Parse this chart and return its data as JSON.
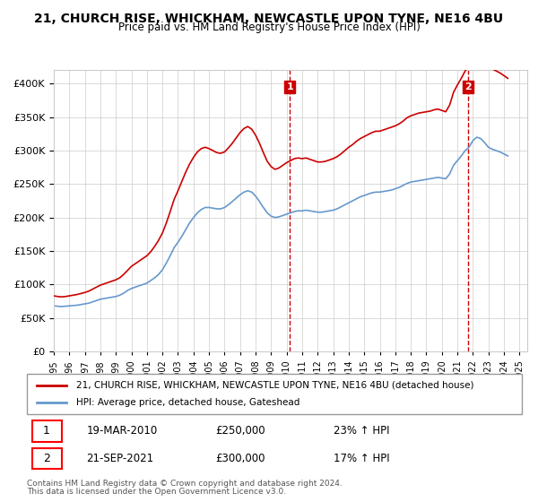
{
  "title": "21, CHURCH RISE, WHICKHAM, NEWCASTLE UPON TYNE, NE16 4BU",
  "subtitle": "Price paid vs. HM Land Registry's House Price Index (HPI)",
  "legend_line1": "21, CHURCH RISE, WHICKHAM, NEWCASTLE UPON TYNE, NE16 4BU (detached house)",
  "legend_line2": "HPI: Average price, detached house, Gateshead",
  "footnote1": "Contains HM Land Registry data © Crown copyright and database right 2024.",
  "footnote2": "This data is licensed under the Open Government Licence v3.0.",
  "transaction1_label": "1",
  "transaction1_date": "19-MAR-2010",
  "transaction1_price": "£250,000",
  "transaction1_hpi": "23% ↑ HPI",
  "transaction2_label": "2",
  "transaction2_date": "21-SEP-2021",
  "transaction2_price": "£300,000",
  "transaction2_hpi": "17% ↑ HPI",
  "red_color": "#cc0000",
  "blue_color": "#6699cc",
  "vline_color": "#cc0000",
  "background_color": "#ffffff",
  "grid_color": "#cccccc",
  "ylim": [
    0,
    420000
  ],
  "yticks": [
    0,
    50000,
    100000,
    150000,
    200000,
    250000,
    300000,
    350000,
    400000
  ],
  "hpi_data": {
    "years": [
      1995.0,
      1995.25,
      1995.5,
      1995.75,
      1996.0,
      1996.25,
      1996.5,
      1996.75,
      1997.0,
      1997.25,
      1997.5,
      1997.75,
      1998.0,
      1998.25,
      1998.5,
      1998.75,
      1999.0,
      1999.25,
      1999.5,
      1999.75,
      2000.0,
      2000.25,
      2000.5,
      2000.75,
      2001.0,
      2001.25,
      2001.5,
      2001.75,
      2002.0,
      2002.25,
      2002.5,
      2002.75,
      2003.0,
      2003.25,
      2003.5,
      2003.75,
      2004.0,
      2004.25,
      2004.5,
      2004.75,
      2005.0,
      2005.25,
      2005.5,
      2005.75,
      2006.0,
      2006.25,
      2006.5,
      2006.75,
      2007.0,
      2007.25,
      2007.5,
      2007.75,
      2008.0,
      2008.25,
      2008.5,
      2008.75,
      2009.0,
      2009.25,
      2009.5,
      2009.75,
      2010.0,
      2010.25,
      2010.5,
      2010.75,
      2011.0,
      2011.25,
      2011.5,
      2011.75,
      2012.0,
      2012.25,
      2012.5,
      2012.75,
      2013.0,
      2013.25,
      2013.5,
      2013.75,
      2014.0,
      2014.25,
      2014.5,
      2014.75,
      2015.0,
      2015.25,
      2015.5,
      2015.75,
      2016.0,
      2016.25,
      2016.5,
      2016.75,
      2017.0,
      2017.25,
      2017.5,
      2017.75,
      2018.0,
      2018.25,
      2018.5,
      2018.75,
      2019.0,
      2019.25,
      2019.5,
      2019.75,
      2020.0,
      2020.25,
      2020.5,
      2020.75,
      2021.0,
      2021.25,
      2021.5,
      2021.75,
      2022.0,
      2022.25,
      2022.5,
      2022.75,
      2023.0,
      2023.25,
      2023.5,
      2023.75,
      2024.0,
      2024.25
    ],
    "values": [
      68000,
      67500,
      67000,
      67500,
      68000,
      68500,
      69000,
      70000,
      71000,
      72000,
      74000,
      76000,
      78000,
      79000,
      80000,
      81000,
      82000,
      84000,
      87000,
      91000,
      94000,
      96000,
      98000,
      100000,
      102000,
      106000,
      110000,
      115000,
      122000,
      132000,
      143000,
      155000,
      163000,
      172000,
      182000,
      192000,
      200000,
      207000,
      212000,
      215000,
      215000,
      214000,
      213000,
      213000,
      215000,
      219000,
      224000,
      229000,
      234000,
      238000,
      240000,
      238000,
      232000,
      224000,
      215000,
      207000,
      202000,
      200000,
      201000,
      203000,
      205000,
      207000,
      209000,
      210000,
      210000,
      211000,
      210000,
      209000,
      208000,
      208000,
      209000,
      210000,
      211000,
      213000,
      216000,
      219000,
      222000,
      225000,
      228000,
      231000,
      233000,
      235000,
      237000,
      238000,
      238000,
      239000,
      240000,
      241000,
      243000,
      245000,
      248000,
      251000,
      253000,
      254000,
      255000,
      256000,
      257000,
      258000,
      259000,
      260000,
      259000,
      258000,
      265000,
      278000,
      285000,
      292000,
      300000,
      305000,
      315000,
      320000,
      318000,
      312000,
      305000,
      302000,
      300000,
      298000,
      295000,
      292000
    ]
  },
  "red_data": {
    "years": [
      1995.0,
      1995.25,
      1995.5,
      1995.75,
      1996.0,
      1996.25,
      1996.5,
      1996.75,
      1997.0,
      1997.25,
      1997.5,
      1997.75,
      1998.0,
      1998.25,
      1998.5,
      1998.75,
      1999.0,
      1999.25,
      1999.5,
      1999.75,
      2000.0,
      2000.25,
      2000.5,
      2000.75,
      2001.0,
      2001.25,
      2001.5,
      2001.75,
      2002.0,
      2002.25,
      2002.5,
      2002.75,
      2003.0,
      2003.25,
      2003.5,
      2003.75,
      2004.0,
      2004.25,
      2004.5,
      2004.75,
      2005.0,
      2005.25,
      2005.5,
      2005.75,
      2006.0,
      2006.25,
      2006.5,
      2006.75,
      2007.0,
      2007.25,
      2007.5,
      2007.75,
      2008.0,
      2008.25,
      2008.5,
      2008.75,
      2009.0,
      2009.25,
      2009.5,
      2009.75,
      2010.0,
      2010.25,
      2010.5,
      2010.75,
      2011.0,
      2011.25,
      2011.5,
      2011.75,
      2012.0,
      2012.25,
      2012.5,
      2012.75,
      2013.0,
      2013.25,
      2013.5,
      2013.75,
      2014.0,
      2014.25,
      2014.5,
      2014.75,
      2015.0,
      2015.25,
      2015.5,
      2015.75,
      2016.0,
      2016.25,
      2016.5,
      2016.75,
      2017.0,
      2017.25,
      2017.5,
      2017.75,
      2018.0,
      2018.25,
      2018.5,
      2018.75,
      2019.0,
      2019.25,
      2019.5,
      2019.75,
      2020.0,
      2020.25,
      2020.5,
      2020.75,
      2021.0,
      2021.25,
      2021.5,
      2021.75,
      2022.0,
      2022.25,
      2022.5,
      2022.75,
      2023.0,
      2023.25,
      2023.5,
      2023.75,
      2024.0,
      2024.25
    ],
    "values": [
      83000,
      82000,
      81500,
      82000,
      83000,
      84000,
      85000,
      86500,
      88000,
      90000,
      93000,
      96000,
      99000,
      101000,
      103000,
      105000,
      107000,
      110000,
      115000,
      121000,
      127000,
      131000,
      135000,
      139000,
      143000,
      149000,
      157000,
      166000,
      177000,
      192000,
      209000,
      227000,
      240000,
      254000,
      268000,
      280000,
      290000,
      298000,
      303000,
      305000,
      303000,
      300000,
      297000,
      296000,
      298000,
      304000,
      311000,
      319000,
      327000,
      333000,
      336000,
      332000,
      323000,
      311000,
      297000,
      284000,
      276000,
      272000,
      274000,
      278000,
      282000,
      285000,
      288000,
      289000,
      288000,
      289000,
      287000,
      285000,
      283000,
      283000,
      284000,
      286000,
      288000,
      291000,
      295000,
      300000,
      305000,
      309000,
      314000,
      318000,
      321000,
      324000,
      327000,
      329000,
      329000,
      331000,
      333000,
      335000,
      337000,
      340000,
      344000,
      349000,
      352000,
      354000,
      356000,
      357000,
      358000,
      359000,
      361000,
      362000,
      360000,
      358000,
      368000,
      387000,
      398000,
      408000,
      419000,
      427000,
      441000,
      449000,
      446000,
      437000,
      427000,
      422000,
      419000,
      416000,
      412000,
      408000
    ]
  },
  "transaction1_x": 2010.2,
  "transaction2_x": 2021.7
}
